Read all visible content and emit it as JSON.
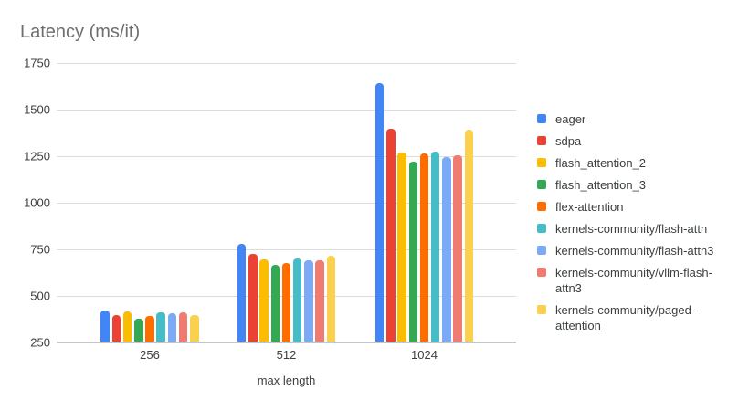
{
  "chart_data": {
    "type": "bar",
    "title": "Latency (ms/it)",
    "xlabel": "max length",
    "ylabel": "",
    "categories": [
      "256",
      "512",
      "1024"
    ],
    "series": [
      {
        "name": "eager",
        "color": "#4285F4",
        "values": [
          420,
          780,
          1640
        ]
      },
      {
        "name": "sdpa",
        "color": "#EA4335",
        "values": [
          396,
          724,
          1396
        ]
      },
      {
        "name": "flash_attention_2",
        "color": "#FBBC04",
        "values": [
          416,
          695,
          1272
        ]
      },
      {
        "name": "flash_attention_3",
        "color": "#34A853",
        "values": [
          379,
          666,
          1223
        ]
      },
      {
        "name": "flex-attention",
        "color": "#FF6D01",
        "values": [
          391,
          676,
          1266
        ]
      },
      {
        "name": "kernels-community/flash-attn",
        "color": "#46BDC6",
        "values": [
          413,
          699,
          1275
        ]
      },
      {
        "name": "kernels-community/flash-attn3",
        "color": "#7BAAF7",
        "values": [
          406,
          690,
          1245
        ]
      },
      {
        "name": "kernels-community/vllm-flash-attn3",
        "color": "#F07B72",
        "values": [
          410,
          693,
          1256
        ]
      },
      {
        "name": "kernels-community/paged-attention",
        "color": "#FCD04F",
        "values": [
          397,
          716,
          1392
        ]
      }
    ],
    "y_ticks": [
      250,
      500,
      750,
      1000,
      1250,
      1500,
      1750
    ],
    "ylim": [
      250,
      1800
    ],
    "grid": true,
    "legend_position": "right"
  }
}
